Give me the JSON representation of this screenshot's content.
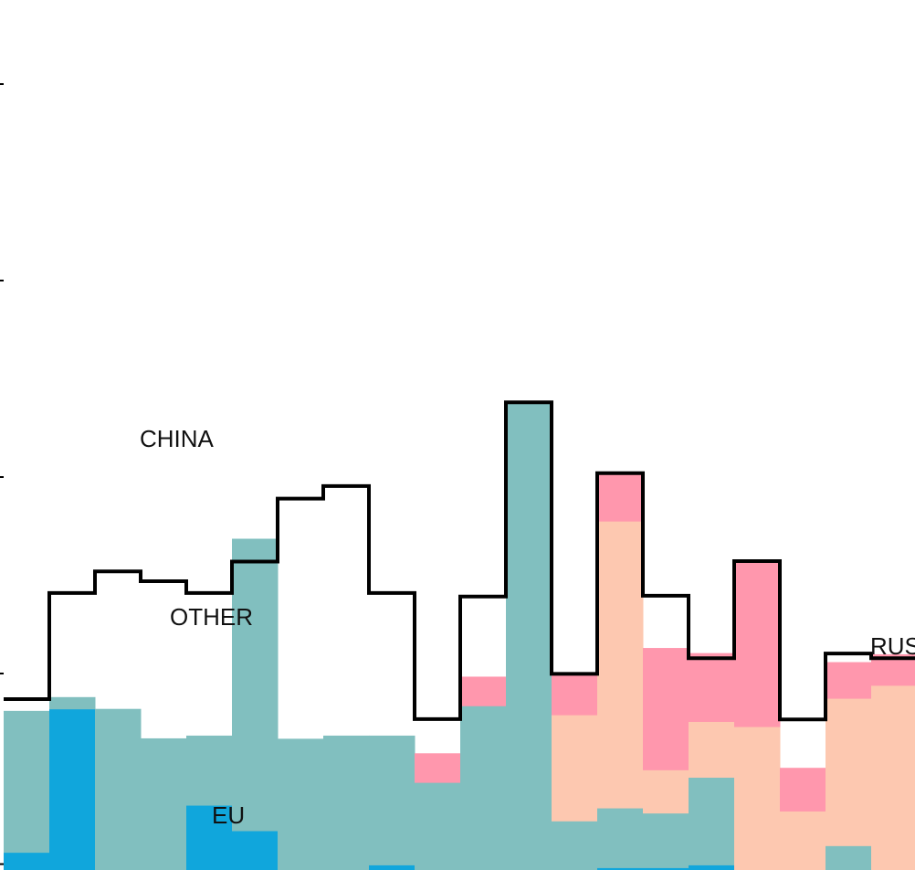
{
  "chart_data": {
    "type": "area",
    "title": "",
    "xlabel": "",
    "ylabel": "",
    "x": [
      0,
      1,
      2,
      3,
      4,
      5,
      6,
      7,
      8,
      9,
      10,
      11,
      12,
      13,
      14,
      15,
      16,
      17,
      18,
      19
    ],
    "ylim": [
      0,
      100
    ],
    "series": [
      {
        "name": "EU",
        "color": "#10a6dc",
        "values": [
          4.5,
          41,
          0,
          0,
          16.5,
          10,
          0,
          0,
          1.3,
          0,
          0,
          0,
          0,
          0.6,
          0.6,
          1.3,
          0,
          0,
          0,
          0
        ]
      },
      {
        "name": "OTHER",
        "color": "#81bfbf",
        "values": [
          36,
          3,
          41,
          33.5,
          17.7,
          74.3,
          33.4,
          34.2,
          32.9,
          22.3,
          41.8,
          119,
          12.5,
          15.2,
          13.9,
          22.3,
          0,
          0,
          6.2,
          0
        ]
      },
      {
        "name": "RUSSIA",
        "color": "#fdc8b0",
        "values": [
          0,
          0,
          0,
          0,
          0,
          0,
          0,
          0,
          0,
          0,
          0,
          0,
          27,
          73,
          11,
          14.2,
          36.5,
          15,
          37.5,
          47
        ]
      },
      {
        "name": "CHINA",
        "color": "#ff97ad",
        "values": [
          0,
          0,
          0,
          0,
          0,
          0,
          0,
          0,
          0,
          7.4,
          7.4,
          0,
          10.4,
          12,
          31,
          17.4,
          42.1,
          11,
          9.2,
          7.9
        ]
      }
    ],
    "total": {
      "color": "#000000",
      "values": [
        43.5,
        70.5,
        76,
        73.5,
        70.5,
        78.5,
        94.5,
        97.7,
        70.5,
        38.4,
        69.6,
        119,
        49.9,
        101,
        69.8,
        53.9,
        78.6,
        38.3,
        55.1,
        53.9
      ]
    },
    "labels": {
      "china": "CHINA",
      "other": "OTHER",
      "eu": "EU",
      "russia": "RUS"
    }
  }
}
